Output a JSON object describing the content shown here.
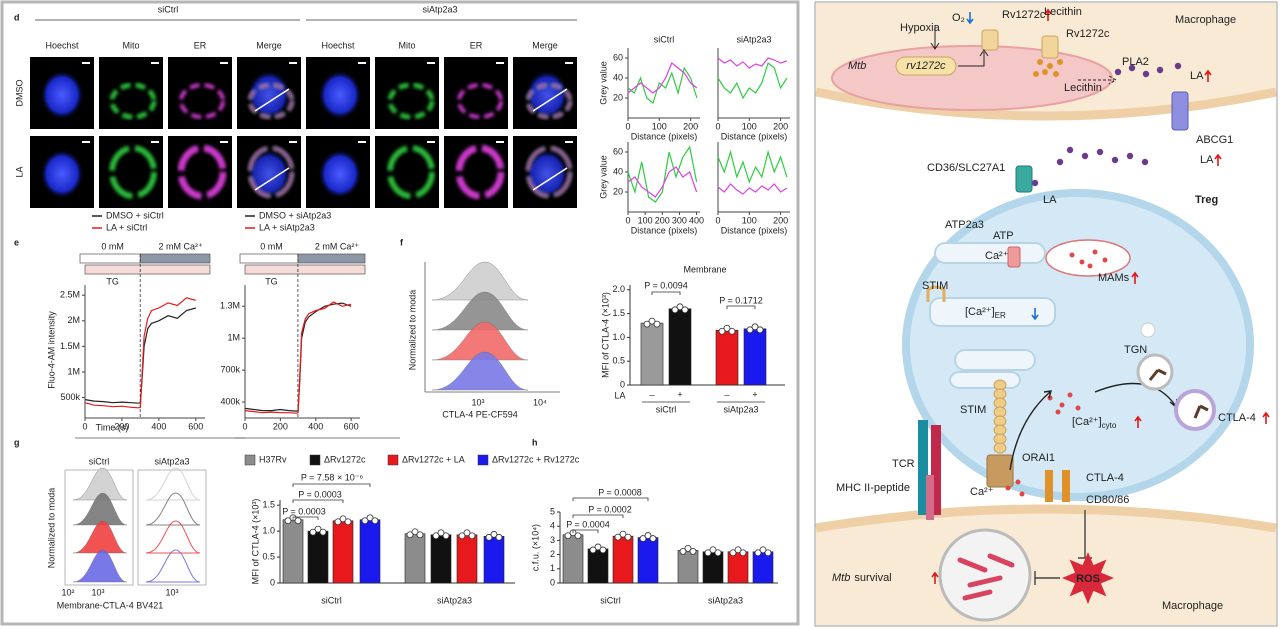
{
  "panel_d": {
    "label": "d",
    "groups": [
      "siCtrl",
      "siAtp2a3"
    ],
    "columns": [
      "Hoechst",
      "Mito",
      "ER",
      "Merge",
      "Hoechst",
      "Mito",
      "ER",
      "Merge"
    ],
    "rows": [
      "DMSO",
      "LA"
    ],
    "profiles": {
      "titles": [
        "siCtrl",
        "siAtp2a3"
      ],
      "ylabel": "Grey value",
      "xlabel": "Distance (pixels)",
      "plots": [
        {
          "type": "line",
          "xlim": [
            0,
            230
          ],
          "xticks": [
            0,
            100,
            200
          ],
          "ylim": [
            0,
            70
          ],
          "yticks": [
            20,
            40,
            60
          ],
          "x": [
            0,
            20,
            40,
            60,
            80,
            100,
            120,
            140,
            160,
            180,
            200,
            220
          ],
          "series": [
            {
              "color": "#2ecc40",
              "values": [
                30,
                25,
                40,
                20,
                15,
                35,
                30,
                45,
                25,
                50,
                40,
                20
              ]
            },
            {
              "color": "#e040e0",
              "values": [
                25,
                30,
                35,
                30,
                25,
                30,
                40,
                55,
                50,
                45,
                35,
                30
              ]
            }
          ]
        },
        {
          "type": "line",
          "xlim": [
            0,
            230
          ],
          "xticks": [
            0,
            100,
            200
          ],
          "ylim": [
            0,
            70
          ],
          "x": [
            0,
            20,
            40,
            60,
            80,
            100,
            120,
            140,
            160,
            180,
            200,
            220
          ],
          "series": [
            {
              "color": "#2ecc40",
              "values": [
                40,
                30,
                25,
                35,
                20,
                30,
                25,
                35,
                55,
                50,
                30,
                40
              ]
            },
            {
              "color": "#e040e0",
              "values": [
                60,
                55,
                58,
                52,
                56,
                50,
                54,
                52,
                60,
                58,
                55,
                57
              ]
            }
          ]
        },
        {
          "type": "line",
          "xlim": [
            0,
            420
          ],
          "xticks": [
            0,
            100,
            200,
            300,
            400
          ],
          "ylim": [
            0,
            70
          ],
          "yticks": [
            20,
            40,
            60
          ],
          "x": [
            0,
            40,
            80,
            120,
            160,
            200,
            240,
            280,
            320,
            360,
            400
          ],
          "series": [
            {
              "color": "#2ecc40",
              "values": [
                40,
                20,
                50,
                15,
                10,
                20,
                60,
                35,
                55,
                65,
                30
              ]
            },
            {
              "color": "#e040e0",
              "values": [
                30,
                35,
                25,
                20,
                15,
                25,
                40,
                45,
                35,
                40,
                20
              ]
            }
          ]
        },
        {
          "type": "line",
          "xlim": [
            0,
            230
          ],
          "xticks": [
            0,
            100,
            200
          ],
          "ylim": [
            0,
            70
          ],
          "x": [
            0,
            20,
            40,
            60,
            80,
            100,
            120,
            140,
            160,
            180,
            200,
            220
          ],
          "series": [
            {
              "color": "#2ecc40",
              "values": [
                55,
                40,
                60,
                35,
                50,
                30,
                45,
                35,
                60,
                40,
                55,
                35
              ]
            },
            {
              "color": "#e040e0",
              "values": [
                25,
                20,
                28,
                22,
                18,
                24,
                20,
                26,
                22,
                28,
                20,
                24
              ]
            }
          ]
        }
      ]
    }
  },
  "panel_e": {
    "label": "e",
    "charts": [
      {
        "type": "line",
        "ylabel": "Fluo-4-AM intensity",
        "xlabel": "Time (s)",
        "protocol": [
          "0 mM",
          "2 mM Ca²⁺",
          "TG"
        ],
        "xlim": [
          0,
          650
        ],
        "xticks": [
          0,
          200,
          400,
          600
        ],
        "ylim": [
          100000,
          2700000
        ],
        "yticks": [
          {
            "value": 500000,
            "label": "500k"
          },
          {
            "value": 1000000,
            "label": "1M"
          },
          {
            "value": 1500000,
            "label": "1.5M"
          },
          {
            "value": 2000000,
            "label": "2M"
          },
          {
            "value": 2500000,
            "label": "2.5M"
          }
        ],
        "x": [
          0,
          50,
          100,
          150,
          200,
          250,
          290,
          300,
          310,
          320,
          340,
          360,
          400,
          450,
          500,
          550,
          600
        ],
        "series": [
          {
            "name": "DMSO + siCtrl",
            "color": "#222222",
            "values": [
              460000,
              430000,
              420000,
              400000,
              410000,
              400000,
              390000,
              400000,
              900000,
              1500000,
              1850000,
              1950000,
              2000000,
              2100000,
              2050000,
              2200000,
              2250000
            ]
          },
          {
            "name": "LA + siCtrl",
            "color": "#e8191c",
            "values": [
              400000,
              350000,
              340000,
              320000,
              330000,
              310000,
              300000,
              310000,
              1000000,
              1700000,
              2050000,
              2200000,
              2250000,
              2350000,
              2300000,
              2450000,
              2400000
            ]
          }
        ]
      },
      {
        "type": "line",
        "protocol": [
          "0 mM",
          "2 mM Ca²⁺",
          "TG"
        ],
        "xlim": [
          0,
          650
        ],
        "xticks": [
          0,
          200,
          400,
          600
        ],
        "ylim": [
          250000,
          1500000
        ],
        "yticks": [
          {
            "value": 400000,
            "label": "400k"
          },
          {
            "value": 700000,
            "label": "700k"
          },
          {
            "value": 1000000,
            "label": "1M"
          },
          {
            "value": 1300000,
            "label": "1.3M"
          }
        ],
        "x": [
          0,
          50,
          100,
          150,
          200,
          250,
          290,
          300,
          310,
          320,
          340,
          360,
          400,
          450,
          500,
          550,
          600
        ],
        "series": [
          {
            "name": "DMSO + siAtp2a3",
            "color": "#222222",
            "values": [
              340000,
              330000,
              320000,
              320000,
              330000,
              320000,
              315000,
              320000,
              600000,
              1000000,
              1150000,
              1200000,
              1250000,
              1300000,
              1320000,
              1330000,
              1300000
            ]
          },
          {
            "name": "LA + siAtp2a3",
            "color": "#e8191c",
            "values": [
              320000,
              310000,
              300000,
              305000,
              300000,
              300000,
              295000,
              300000,
              650000,
              1050000,
              1180000,
              1230000,
              1260000,
              1280000,
              1340000,
              1300000,
              1320000
            ]
          }
        ]
      }
    ]
  },
  "panel_f": {
    "label": "f",
    "histogram": {
      "ylabel": "Normalized to moda",
      "xticklabels": [
        "10³",
        "10⁴"
      ],
      "xlabel": "CTLA-4 PE-CF594"
    },
    "bars": {
      "type": "bar",
      "title": "Membrane",
      "ylabel": "MFI of CTLA-4 (×10³)",
      "ylim": [
        0,
        2.1
      ],
      "yticks": [
        0,
        0.5,
        {
          "value": 1,
          "label": "1.0"
        },
        1.5,
        {
          "value": 2,
          "label": "2.0"
        }
      ],
      "treatment": "LA",
      "categories": [
        "siCtrl",
        "siAtp2a3"
      ],
      "series": [
        {
          "name": "–",
          "colors": [
            "#9a9a9a",
            "#e8191c"
          ],
          "values": [
            1.3,
            1.15
          ]
        },
        {
          "name": "+",
          "colors": [
            "#111111",
            "#1a1aee"
          ],
          "values": [
            1.6,
            1.18
          ]
        }
      ],
      "p_values": [
        "P = 0.0094",
        "P = 0.1712"
      ]
    }
  },
  "panel_g": {
    "label": "g",
    "histogram": {
      "ylabel": "Normalized to moda",
      "titles": [
        "siCtrl",
        "siAtp2a3"
      ],
      "xticklabels": [
        "10²",
        "10³",
        "10³"
      ],
      "xlabel": "Membrane-CTLA-4 BV421"
    },
    "bars": {
      "type": "bar",
      "ylabel": "MFI of CTLA-4 (×10³)",
      "ylim": [
        0,
        1.6
      ],
      "yticks": [
        0,
        0.5,
        {
          "value": 1,
          "label": "1.0"
        },
        1.5
      ],
      "categories": [
        "siCtrl",
        "siAtp2a3"
      ],
      "series": [
        {
          "name": "H37Rv",
          "color": "#8c8c8c",
          "values": [
            1.22,
            0.95
          ]
        },
        {
          "name": "ΔRv1272c",
          "color": "#111111",
          "values": [
            1.0,
            0.93
          ]
        },
        {
          "name": "ΔRv1272c + LA",
          "color": "#e8191c",
          "values": [
            1.2,
            0.93
          ]
        },
        {
          "name": "ΔRv1272c + Rv1272c",
          "color": "#1a1aee",
          "values": [
            1.22,
            0.9
          ]
        }
      ],
      "p_values": [
        "P = 0.0003",
        "P = 0.0003",
        "P = 7.58 × 10⁻⁶"
      ]
    }
  },
  "panel_h": {
    "label": "h",
    "bars": {
      "type": "bar",
      "ylabel": "c.f.u. (×10⁴)",
      "ylim": [
        0,
        5
      ],
      "yticks": [
        0,
        1,
        2,
        3,
        4,
        5
      ],
      "categories": [
        "siCtrl",
        "siAtp2a3"
      ],
      "series": [
        {
          "color": "#8c8c8c",
          "values": [
            3.4,
            2.3
          ]
        },
        {
          "color": "#111111",
          "values": [
            2.4,
            2.2
          ]
        },
        {
          "color": "#e8191c",
          "values": [
            3.3,
            2.2
          ]
        },
        {
          "color": "#1a1aee",
          "values": [
            3.2,
            2.2
          ]
        }
      ],
      "p_values": [
        "P = 0.0004",
        "P = 0.0002",
        "P = 0.0008"
      ]
    }
  },
  "diagram": {
    "macrophage_top": "Macrophage",
    "hypoxia": "Hypoxia",
    "o2": "O₂",
    "rv1272c_protein": "Rv1272c",
    "lecithin_top": "Lecithin",
    "rv1272c_right": "Rv1272c",
    "mtb": "Mtb",
    "rv1272c_gene": "rv1272c",
    "lecithin": "Lecithin",
    "pla2": "PLA2",
    "la_mtb": "LA",
    "abcg1": "ABCG1",
    "la_out": "LA",
    "cd36": "CD36/SLC27A1",
    "la_in": "LA",
    "treg": "Treg",
    "atp2a3": "ATP2a3",
    "atp": "ATP",
    "ca_mam": "Ca²⁺",
    "mams": "MAMs",
    "stim_top": "STIM",
    "ca_er": "[Ca²⁺]",
    "ca_er_sub": "ER",
    "tgn": "TGN",
    "stim_bottom": "STIM",
    "ca_cyto": "[Ca²⁺]",
    "ca_cyto_sub": "cyto",
    "ctla4_up": "CTLA-4",
    "orai1": "ORAI1",
    "tcr": "TCR",
    "mhc": "MHC II-peptide",
    "ca_in": "Ca²⁺",
    "ctla4": "CTLA-4",
    "cd80": "CD80/86",
    "mtb_survival": "Mtb",
    "survival": "survival",
    "ros": "ROS",
    "macrophage_bottom": "Macrophage"
  }
}
